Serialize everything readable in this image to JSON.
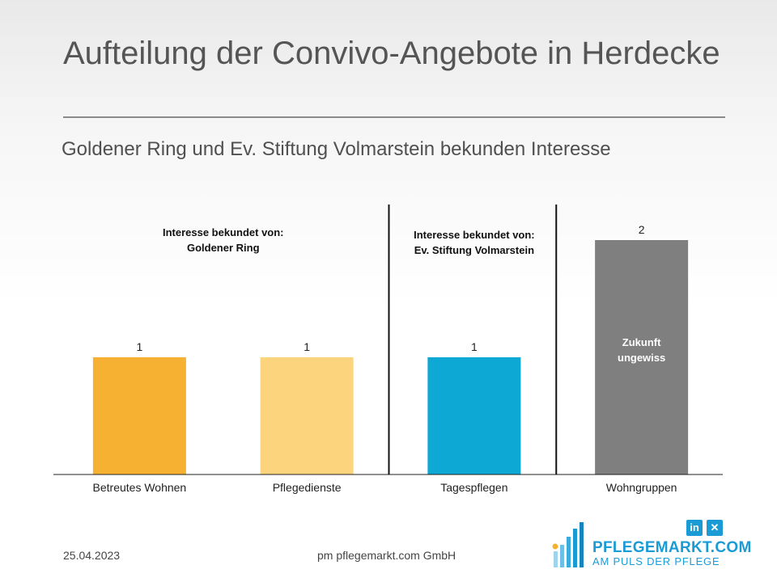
{
  "slide": {
    "title": "Aufteilung der Convivo-Angebote in Herdecke",
    "subtitle": "Goldener Ring und Ev. Stiftung Volmarstein bekunden Interesse"
  },
  "chart_data": {
    "type": "bar",
    "categories": [
      "Betreutes Wohnen",
      "Pflegedienste",
      "Tagespflegen",
      "Wohngruppen"
    ],
    "values": [
      1,
      1,
      1,
      2
    ],
    "bar_colors": [
      "#f6b133",
      "#fcd47d",
      "#0ea8d4",
      "#7f7f7f"
    ],
    "data_labels": [
      "1",
      "1",
      "1",
      "2"
    ],
    "ylim": [
      0,
      2
    ],
    "grid": false,
    "annotations": [
      {
        "lines": [
          "Interesse bekundet von:",
          "Goldener Ring"
        ],
        "group": [
          0,
          1
        ]
      },
      {
        "lines": [
          "Interesse bekundet von:",
          "Ev. Stiftung Volmarstein"
        ],
        "group": [
          2,
          2
        ]
      },
      {
        "lines": [
          "Zukunft",
          "ungewiss"
        ],
        "inside_bar": 3
      }
    ],
    "separators_after": [
      1,
      2
    ]
  },
  "footer": {
    "date": "25.04.2023",
    "company": "pm pflegemarkt.com GmbH"
  },
  "logo": {
    "brand": "PFLEGEMARKT.COM",
    "tagline": "AM PULS DER PFLEGE",
    "linkedin": "in",
    "xing": "✕",
    "color": "#1a9bd6"
  }
}
